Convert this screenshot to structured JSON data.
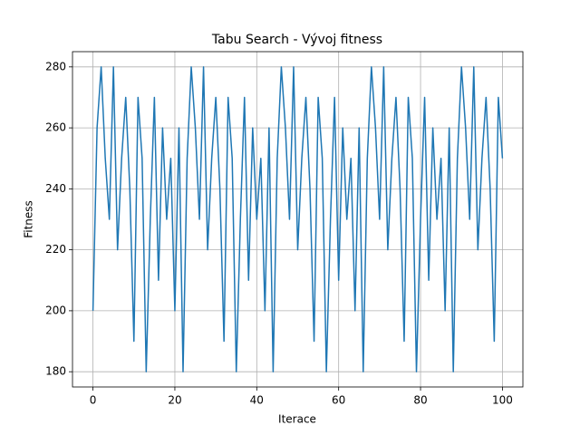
{
  "chart_data": {
    "type": "line",
    "title": "Tabu Search - Vývoj fitness",
    "xlabel": "Iterace",
    "ylabel": "Fitness",
    "x": [
      0,
      1,
      2,
      3,
      4,
      5,
      6,
      7,
      8,
      9,
      10,
      11,
      12,
      13,
      14,
      15,
      16,
      17,
      18,
      19,
      20,
      21,
      22,
      23,
      24,
      25,
      26,
      27,
      28,
      29,
      30,
      31,
      32,
      33,
      34,
      35,
      36,
      37,
      38,
      39,
      40,
      41,
      42,
      43,
      44,
      45,
      46,
      47,
      48,
      49,
      50,
      51,
      52,
      53,
      54,
      55,
      56,
      57,
      58,
      59,
      60,
      61,
      62,
      63,
      64,
      65,
      66,
      67,
      68,
      69,
      70,
      71,
      72,
      73,
      74,
      75,
      76,
      77,
      78,
      79,
      80,
      81,
      82,
      83,
      84,
      85,
      86,
      87,
      88,
      89,
      90,
      91,
      92,
      93,
      94,
      95,
      96,
      97,
      98,
      99,
      100
    ],
    "series": [
      {
        "name": "Fitness",
        "color": "#1f77b4",
        "values": [
          200,
          260,
          280,
          250,
          230,
          280,
          220,
          250,
          270,
          240,
          190,
          270,
          250,
          180,
          230,
          270,
          210,
          260,
          230,
          250,
          200,
          260,
          180,
          250,
          280,
          260,
          230,
          280,
          220,
          250,
          270,
          240,
          190,
          270,
          250,
          180,
          230,
          270,
          210,
          260,
          230,
          250,
          200,
          260,
          180,
          250,
          280,
          260,
          230,
          280,
          220,
          250,
          270,
          240,
          190,
          270,
          250,
          180,
          230,
          270,
          210,
          260,
          230,
          250,
          200,
          260,
          180,
          250,
          280,
          260,
          230,
          280,
          220,
          250,
          270,
          240,
          190,
          270,
          250,
          180,
          230,
          270,
          210,
          260,
          230,
          250,
          200,
          260,
          180,
          250,
          280,
          260,
          230,
          280,
          220,
          250,
          270,
          240,
          190,
          270,
          250
        ]
      }
    ],
    "xlim": [
      -5,
      105
    ],
    "ylim": [
      175,
      285
    ],
    "xticks": [
      0,
      20,
      40,
      60,
      80,
      100
    ],
    "yticks": [
      180,
      200,
      220,
      240,
      260,
      280
    ],
    "grid": true
  }
}
